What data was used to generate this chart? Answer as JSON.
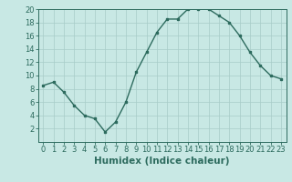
{
  "x": [
    0,
    1,
    2,
    3,
    4,
    5,
    6,
    7,
    8,
    9,
    10,
    11,
    12,
    13,
    14,
    15,
    16,
    17,
    18,
    19,
    20,
    21,
    22,
    23
  ],
  "y": [
    8.5,
    9.0,
    7.5,
    5.5,
    4.0,
    3.5,
    1.5,
    3.0,
    6.0,
    10.5,
    13.5,
    16.5,
    18.5,
    18.5,
    20.0,
    20.0,
    20.0,
    19.0,
    18.0,
    16.0,
    13.5,
    11.5,
    10.0,
    9.5
  ],
  "xlabel": "Humidex (Indice chaleur)",
  "ylim": [
    0,
    20
  ],
  "xlim": [
    -0.5,
    23.5
  ],
  "yticks": [
    2,
    4,
    6,
    8,
    10,
    12,
    14,
    16,
    18,
    20
  ],
  "xticks": [
    0,
    1,
    2,
    3,
    4,
    5,
    6,
    7,
    8,
    9,
    10,
    11,
    12,
    13,
    14,
    15,
    16,
    17,
    18,
    19,
    20,
    21,
    22,
    23
  ],
  "line_color": "#2d6b5e",
  "marker": "s",
  "marker_size": 2.0,
  "bg_color": "#c8e8e4",
  "grid_color": "#a8ccc8",
  "xlabel_fontsize": 7.5,
  "tick_fontsize": 6.0
}
